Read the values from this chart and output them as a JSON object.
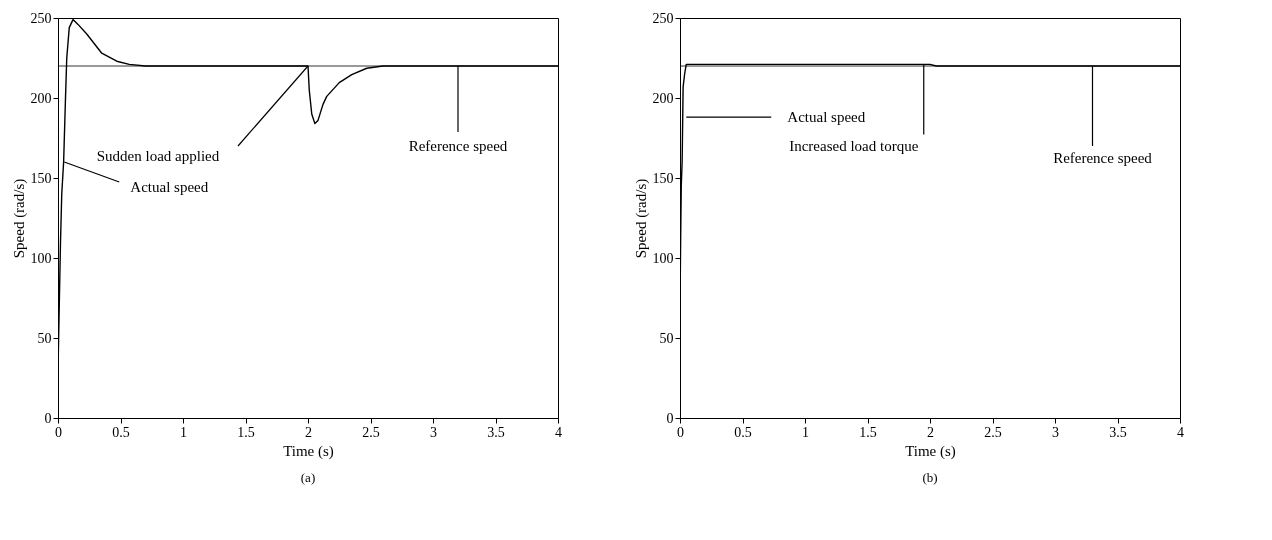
{
  "chart_data": [
    {
      "type": "line",
      "xlabel": "Time (s)",
      "ylabel": "Speed (rad/s)",
      "xlim": [
        0,
        4
      ],
      "ylim": [
        0,
        250
      ],
      "xticks": [
        0,
        0.5,
        1,
        1.5,
        2,
        2.5,
        3,
        3.5,
        4
      ],
      "yticks": [
        0,
        50,
        100,
        150,
        200,
        250
      ],
      "grid": false,
      "series": [
        {
          "color": "#000000",
          "x": [
            0,
            0.01,
            0.02,
            0.03,
            0.045,
            0.06,
            0.07,
            0.09,
            0.12,
            0.16,
            0.23,
            0.35,
            0.47,
            0.57,
            0.7,
            2.0,
            2.01,
            2.03,
            2.055,
            2.08,
            2.12,
            2.15,
            2.25,
            2.35,
            2.47,
            2.6,
            4
          ],
          "values": [
            30,
            70,
            110,
            140,
            160,
            200,
            225,
            244,
            249,
            246,
            240,
            228,
            223,
            221,
            220,
            220,
            205,
            190,
            184,
            186,
            196,
            201,
            209.6,
            214.6,
            218.6,
            220,
            220
          ]
        }
      ],
      "ref_lines": [
        {
          "axis": "y",
          "value": 220,
          "color": "#000000"
        }
      ],
      "annotations": [
        {
          "text": "Actual speed",
          "x": 0.05,
          "y": 160
        },
        {
          "text": "Sudden load applied",
          "x": 2.0,
          "y": 220
        },
        {
          "text": "Reference speed",
          "x": 3.2,
          "y": 220
        },
        "(a)"
      ]
    },
    {
      "type": "line",
      "xlabel": "Time (s)",
      "ylabel": "Speed (rad/s)",
      "xlim": [
        0,
        4
      ],
      "ylim": [
        0,
        250
      ],
      "xticks": [
        0,
        0.5,
        1,
        1.5,
        2,
        2.5,
        3,
        3.5,
        4
      ],
      "yticks": [
        0,
        50,
        100,
        150,
        200,
        250
      ],
      "grid": false,
      "series": [
        {
          "color": "#000000",
          "x": [
            0,
            0.005,
            0.01,
            0.017,
            0.025,
            0.037,
            0.05,
            1.95,
            2.0,
            2.05,
            4
          ],
          "values": [
            70,
            110,
            145,
            160,
            207,
            215,
            221,
            221,
            221,
            220,
            220
          ]
        }
      ],
      "ref_lines": [
        {
          "axis": "y",
          "value": 220,
          "color": "#000000"
        }
      ],
      "annotations": [
        {
          "text": "Actual speed",
          "x": 0.05,
          "y": 188
        },
        {
          "text": "Increased load torque",
          "x": 1.95,
          "y": 221
        },
        {
          "text": "Reference speed",
          "x": 3.3,
          "y": 220
        },
        "(b)"
      ]
    }
  ]
}
